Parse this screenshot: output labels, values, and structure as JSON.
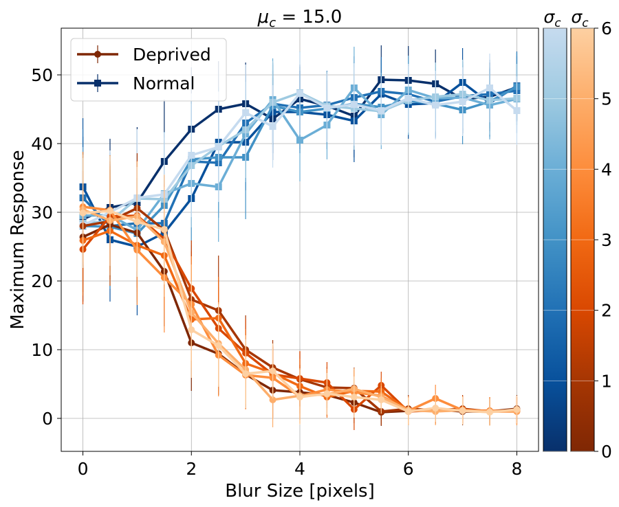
{
  "chart_data": {
    "type": "line",
    "title_prefix": "μ",
    "title_sub": "c",
    "title_suffix": " = 15.0",
    "xlabel": "Blur Size [pixels]",
    "ylabel": "Maximum Response",
    "xlim": [
      -0.4,
      8.4
    ],
    "ylim": [
      -4.8,
      56.8
    ],
    "xticks": [
      0,
      2,
      4,
      6,
      8
    ],
    "yticks": [
      0,
      10,
      20,
      30,
      40,
      50
    ],
    "grid": true,
    "legend_position": "top-left",
    "legend": [
      {
        "name": "Deprived",
        "color": "#7f2704",
        "marker": "circle"
      },
      {
        "name": "Normal",
        "color": "#08306b",
        "marker": "square"
      }
    ],
    "colorbars": [
      {
        "label_main": "σ",
        "label_sub": "c",
        "colors": [
          "#08306b",
          "#08519c",
          "#2171b5",
          "#4292c6",
          "#6baed6",
          "#9ecae1",
          "#c6dbef"
        ]
      },
      {
        "label_main": "σ",
        "label_sub": "c",
        "colors": [
          "#7f2704",
          "#a63603",
          "#d94801",
          "#f16913",
          "#fd8d3c",
          "#fdae6b",
          "#fdd0a2"
        ],
        "ticks": [
          0,
          1,
          2,
          3,
          4,
          5,
          6
        ],
        "range": [
          0,
          6
        ]
      }
    ],
    "x": [
      0,
      0.5,
      1,
      1.5,
      2,
      2.5,
      3,
      3.5,
      4,
      4.5,
      5,
      5.5,
      6,
      6.5,
      7,
      7.5,
      8
    ],
    "series": [
      {
        "group": "Normal",
        "sigma": 0,
        "color": "#08306b",
        "values": [
          29,
          30.7,
          31.4,
          37.4,
          42.1,
          45,
          45.8,
          43.6,
          46.5,
          45.5,
          44,
          49.3,
          49.2,
          48.7,
          46.5,
          46.8,
          48.2
        ],
        "errors": [
          12,
          10,
          11,
          9,
          9,
          7,
          6,
          6,
          5,
          5,
          6,
          5,
          5,
          5,
          5,
          5,
          5
        ]
      },
      {
        "group": "Normal",
        "sigma": 1,
        "color": "#08519c",
        "values": [
          33.7,
          26,
          25,
          27,
          32,
          40.2,
          40.2,
          44.6,
          44.6,
          44.2,
          43.3,
          47.2,
          45.7,
          45.9,
          48.9,
          45.9,
          48.4
        ],
        "errors": [
          10,
          9,
          10,
          9,
          9,
          8,
          7,
          6,
          6,
          5,
          6,
          5,
          5,
          5,
          5,
          5,
          5
        ]
      },
      {
        "group": "Normal",
        "sigma": 2,
        "color": "#2171b5",
        "values": [
          32.1,
          28,
          28.4,
          28.4,
          37.4,
          37.2,
          43,
          45.8,
          45.2,
          45.6,
          46.7,
          47.6,
          47.2,
          46.1,
          46.9,
          47.2,
          47.7
        ],
        "errors": [
          10,
          9,
          10,
          9,
          9,
          8,
          7,
          6,
          6,
          5,
          6,
          5,
          5,
          5,
          5,
          5,
          5
        ]
      },
      {
        "group": "Normal",
        "sigma": 3,
        "color": "#4292c6",
        "values": [
          28,
          27.9,
          26.9,
          31,
          37.7,
          38,
          38,
          45.5,
          44.6,
          45.1,
          45.8,
          45.3,
          46.2,
          45.8,
          44.9,
          46.1,
          48.3
        ],
        "errors": [
          10,
          9,
          10,
          9,
          9,
          8,
          9,
          6,
          6,
          5,
          6,
          5,
          5,
          5,
          5,
          5,
          5
        ]
      },
      {
        "group": "Normal",
        "sigma": 4,
        "color": "#6baed6",
        "values": [
          29.5,
          29.6,
          27.4,
          32.7,
          34.2,
          33.7,
          41.4,
          46.4,
          40.5,
          42.7,
          48.1,
          44.2,
          47.8,
          46.6,
          46.7,
          45.6,
          46.5
        ],
        "errors": [
          10,
          9,
          10,
          9,
          9,
          8,
          7,
          6,
          6,
          5,
          6,
          5,
          5,
          5,
          5,
          5,
          5
        ]
      },
      {
        "group": "Normal",
        "sigma": 5,
        "color": "#9ecae1",
        "values": [
          28.4,
          28.7,
          32,
          31.9,
          36.8,
          39.6,
          42,
          46,
          47.4,
          45.5,
          45.1,
          44.7,
          46.3,
          46.8,
          47.2,
          46.3,
          46.6
        ],
        "errors": [
          10,
          9,
          10,
          9,
          9,
          8,
          7,
          6,
          6,
          5,
          6,
          5,
          5,
          5,
          5,
          5,
          5
        ]
      },
      {
        "group": "Normal",
        "sigma": 6,
        "color": "#c6dbef",
        "values": [
          28.1,
          30,
          32.1,
          32.6,
          38.3,
          39.5,
          44.5,
          42.5,
          47.3,
          45.2,
          45.7,
          44.8,
          46.6,
          45.6,
          46.1,
          48.1,
          44.8
        ],
        "errors": [
          10,
          9,
          10,
          9,
          9,
          8,
          7,
          6,
          6,
          5,
          6,
          5,
          5,
          5,
          5,
          5,
          5
        ]
      },
      {
        "group": "Deprived",
        "sigma": 0,
        "color": "#7f2704",
        "values": [
          26.4,
          28.2,
          27,
          21.4,
          11,
          9.4,
          6.4,
          4.1,
          3.8,
          3.4,
          2.3,
          0.9,
          1.1,
          1.3,
          1,
          1,
          1.4
        ],
        "errors": [
          8,
          8,
          8,
          8,
          7,
          6,
          5,
          4,
          4,
          3,
          3,
          2,
          2,
          2,
          2,
          2,
          2
        ]
      },
      {
        "group": "Deprived",
        "sigma": 1,
        "color": "#a63603",
        "values": [
          28,
          28.7,
          30.6,
          27.4,
          17.3,
          15.7,
          10,
          7.4,
          5.7,
          4.5,
          4.4,
          1,
          1.4,
          1.2,
          1.4,
          1,
          1.1
        ],
        "errors": [
          8,
          8,
          8,
          8,
          7,
          8,
          5,
          4,
          4,
          3,
          3,
          2,
          2,
          2,
          2,
          2,
          2
        ]
      },
      {
        "group": "Deprived",
        "sigma": 2,
        "color": "#d94801",
        "values": [
          24.6,
          29.4,
          29.5,
          26.1,
          18.9,
          13.1,
          9.5,
          6.4,
          5.8,
          5.2,
          1.3,
          4.8,
          1,
          1.2,
          1.3,
          1,
          1.2
        ],
        "errors": [
          8,
          8,
          8,
          8,
          7,
          6,
          5,
          4,
          4,
          3,
          3,
          2,
          2,
          2,
          2,
          2,
          2
        ]
      },
      {
        "group": "Deprived",
        "sigma": 3,
        "color": "#f16913",
        "values": [
          25.9,
          27.3,
          25.2,
          23.7,
          14.4,
          14.6,
          8,
          6.6,
          4.7,
          3.1,
          4,
          3.9,
          1.2,
          1.1,
          1.2,
          1.1,
          1.1
        ],
        "errors": [
          8,
          8,
          8,
          8,
          7,
          6,
          5,
          4,
          4,
          3,
          3,
          2,
          2,
          2,
          2,
          2,
          2
        ]
      },
      {
        "group": "Deprived",
        "sigma": 4,
        "color": "#fd8d3c",
        "values": [
          30.8,
          30.3,
          24.5,
          20.5,
          16.6,
          9.2,
          6.3,
          5.9,
          3.2,
          4.2,
          3.8,
          3.3,
          1.1,
          2.9,
          1.2,
          1,
          1
        ],
        "errors": [
          8,
          8,
          8,
          8,
          7,
          6,
          5,
          4,
          4,
          3,
          3,
          2,
          2,
          2,
          2,
          2,
          2
        ]
      },
      {
        "group": "Deprived",
        "sigma": 5,
        "color": "#fdae6b",
        "values": [
          30.4,
          28.8,
          29.4,
          25.7,
          15.4,
          10.9,
          7.1,
          2.7,
          3.3,
          3.5,
          4.3,
          3.1,
          1.2,
          1,
          1.2,
          1,
          1.1
        ],
        "errors": [
          8,
          8,
          8,
          8,
          7,
          6,
          5,
          4,
          4,
          3,
          3,
          2,
          2,
          2,
          2,
          2,
          2
        ]
      },
      {
        "group": "Deprived",
        "sigma": 6,
        "color": "#fdd0a2",
        "values": [
          29.9,
          30.2,
          28.6,
          27.5,
          12.9,
          10.6,
          6.5,
          6.9,
          3.1,
          3.6,
          3.1,
          2.7,
          1,
          1.5,
          1.1,
          0.9,
          1.3
        ],
        "errors": [
          8,
          8,
          8,
          8,
          7,
          6,
          5,
          4,
          4,
          3,
          3,
          2,
          2,
          2,
          2,
          2,
          2
        ]
      }
    ]
  }
}
